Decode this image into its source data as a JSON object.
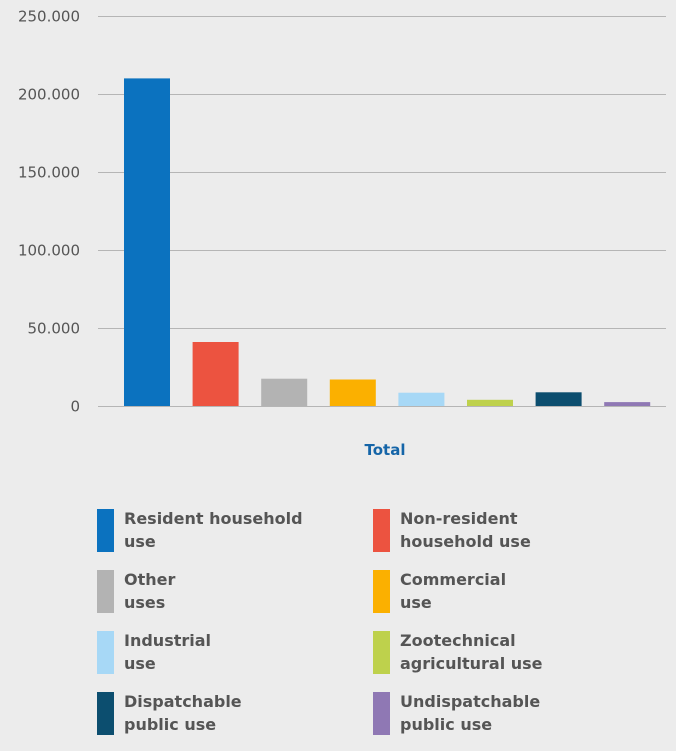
{
  "chart_data": {
    "type": "bar",
    "xlabel": "Total",
    "ylabel": "",
    "ylim": [
      0,
      250000
    ],
    "yticks": [
      0,
      50000,
      100000,
      150000,
      200000,
      250000
    ],
    "ytick_labels": [
      "0",
      "50.000",
      "100.000",
      "150.000",
      "200.000",
      "250.000"
    ],
    "grid": true,
    "legend_position": "bottom",
    "series": [
      {
        "name": "Resident household use",
        "legend_lines": [
          "Resident household",
          "use"
        ],
        "value": 210000,
        "color": "#0b72bf"
      },
      {
        "name": "Non-resident household use",
        "legend_lines": [
          "Non-resident",
          "household use"
        ],
        "value": 41000,
        "color": "#ec5340"
      },
      {
        "name": "Other uses",
        "legend_lines": [
          "Other",
          "uses"
        ],
        "value": 17500,
        "color": "#b3b3b3"
      },
      {
        "name": "Commercial use",
        "legend_lines": [
          "Commercial",
          "use"
        ],
        "value": 17000,
        "color": "#fbb000"
      },
      {
        "name": "Industrial use",
        "legend_lines": [
          "Industrial",
          "use"
        ],
        "value": 8500,
        "color": "#a7d8f6"
      },
      {
        "name": "Zootechnical agricultural use",
        "legend_lines": [
          "Zootechnical",
          "agricultural use"
        ],
        "value": 4000,
        "color": "#bed14c"
      },
      {
        "name": "Dispatchable public use",
        "legend_lines": [
          "Dispatchable",
          "public use"
        ],
        "value": 8800,
        "color": "#0c4e6f"
      },
      {
        "name": "Undispatchable public use",
        "legend_lines": [
          "Undispatchable",
          "public use"
        ],
        "value": 2500,
        "color": "#8f78b4"
      }
    ],
    "colors": {
      "gridline": "#b5b5b5",
      "axis_text": "#555555",
      "xlabel_text": "#1565a8",
      "background": "#ececec"
    }
  }
}
